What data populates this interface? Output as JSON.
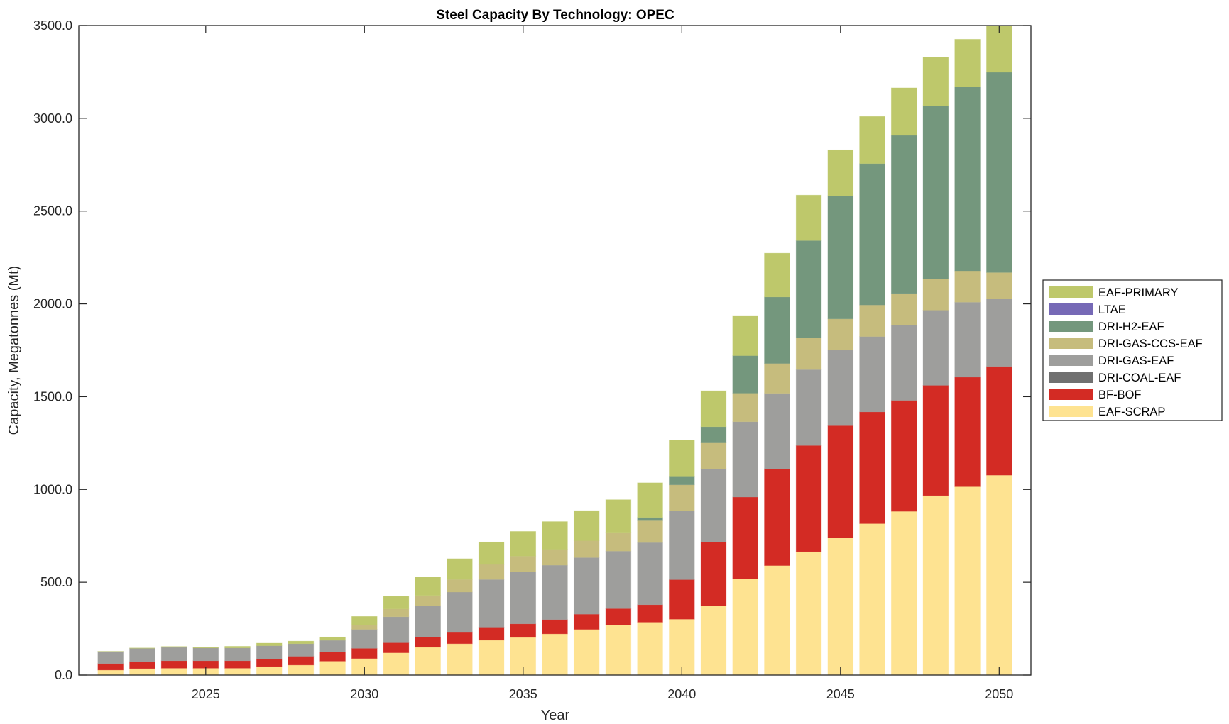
{
  "chart_data": {
    "type": "bar",
    "stacked": true,
    "title": "Steel Capacity By Technology: OPEC",
    "xlabel": "Year",
    "ylabel": "Capacity, Megatonnes (Mt)",
    "xlim": [
      2021,
      2051
    ],
    "ylim": [
      0,
      3500
    ],
    "xticks": [
      2025,
      2030,
      2035,
      2040,
      2045,
      2050
    ],
    "xtick_labels": [
      "2025",
      "2030",
      "2035",
      "2040",
      "2045",
      "2050"
    ],
    "yticks": [
      0,
      500,
      1000,
      1500,
      2000,
      2500,
      3000,
      3500
    ],
    "ytick_labels": [
      "0.0",
      "500.0",
      "1000.0",
      "1500.0",
      "2000.0",
      "2500.0",
      "3000.0",
      "3500.0"
    ],
    "grid": false,
    "legend_position": "outside-right",
    "categories": [
      2022,
      2023,
      2024,
      2025,
      2026,
      2027,
      2028,
      2029,
      2030,
      2031,
      2032,
      2033,
      2034,
      2035,
      2036,
      2037,
      2038,
      2039,
      2040,
      2041,
      2042,
      2043,
      2044,
      2045,
      2046,
      2047,
      2048,
      2049,
      2050
    ],
    "series": [
      {
        "name": "EAF-SCRAP",
        "color": "#fee391",
        "values": [
          27,
          35,
          37,
          37,
          37,
          46,
          54,
          75,
          89,
          120,
          150,
          169,
          188,
          203,
          222,
          246,
          271,
          285,
          301,
          373,
          518,
          590,
          665,
          740,
          816,
          882,
          967,
          1015,
          1077
        ]
      },
      {
        "name": "BF-BOF",
        "color": "#d32b24",
        "values": [
          35,
          38,
          40,
          40,
          40,
          41,
          47,
          49,
          55,
          54,
          55,
          64,
          70,
          73,
          77,
          82,
          87,
          94,
          213,
          344,
          441,
          522,
          572,
          604,
          602,
          598,
          594,
          590,
          586
        ]
      },
      {
        "name": "DRI-COAL-EAF",
        "color": "#707070",
        "values": [
          0,
          0,
          0,
          0,
          0,
          0,
          0,
          0,
          0,
          0,
          0,
          0,
          0,
          0,
          0,
          0,
          0,
          0,
          0,
          0,
          0,
          0,
          0,
          0,
          0,
          0,
          0,
          0,
          0
        ]
      },
      {
        "name": "DRI-GAS-EAF",
        "color": "#9e9e9c",
        "values": [
          65,
          71,
          72,
          69,
          69,
          71,
          68,
          63,
          102,
          140,
          169,
          214,
          257,
          280,
          293,
          305,
          310,
          335,
          371,
          395,
          406,
          406,
          409,
          407,
          406,
          405,
          405,
          404,
          364
        ]
      },
      {
        "name": "DRI-GAS-CCS-EAF",
        "color": "#c6bc7d",
        "values": [
          0,
          0,
          0,
          0,
          0,
          0,
          0,
          0,
          24,
          42,
          55,
          68,
          81,
          85,
          86,
          91,
          101,
          118,
          140,
          139,
          154,
          161,
          171,
          168,
          170,
          171,
          169,
          169,
          142
        ]
      },
      {
        "name": "DRI-H2-EAF",
        "color": "#74977d",
        "values": [
          0,
          0,
          0,
          0,
          0,
          0,
          0,
          0,
          0,
          0,
          0,
          0,
          0,
          0,
          0,
          0,
          0,
          17,
          47,
          87,
          202,
          358,
          524,
          664,
          762,
          852,
          933,
          992,
          1079
        ]
      },
      {
        "name": "LTAE",
        "color": "#7669b6",
        "values": [
          0,
          0,
          0,
          0,
          0,
          0,
          0,
          0,
          0,
          0,
          0,
          0,
          0,
          0,
          0,
          0,
          0,
          0,
          0,
          0,
          0,
          0,
          0,
          0,
          0,
          0,
          0,
          0,
          0
        ]
      },
      {
        "name": "EAF-PRIMARY",
        "color": "#bec86b",
        "values": [
          1,
          2,
          5,
          5,
          9,
          14,
          14,
          18,
          46,
          68,
          100,
          112,
          121,
          133,
          149,
          162,
          176,
          187,
          193,
          194,
          216,
          236,
          245,
          247,
          254,
          256,
          260,
          256,
          262
        ]
      }
    ],
    "legend_order": [
      "EAF-PRIMARY",
      "LTAE",
      "DRI-H2-EAF",
      "DRI-GAS-CCS-EAF",
      "DRI-GAS-EAF",
      "DRI-COAL-EAF",
      "BF-BOF",
      "EAF-SCRAP"
    ]
  }
}
